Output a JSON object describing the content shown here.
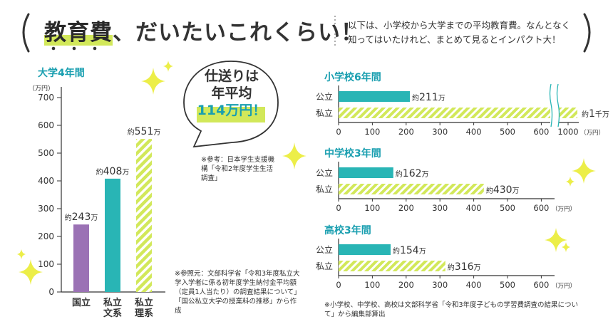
{
  "header": {
    "title_key": "教育費",
    "title_rest": "、だいたいこれくらい！",
    "description": "以下は、小学校から大学までの平均教育費。なんとなく知ってはいたけれど、まとめて見るとインパクト大！"
  },
  "bubble": {
    "line1": "仕送りは",
    "line2": "年平均",
    "line3": "114万円！",
    "note": "※参考：日本学生支援機構「令和2年度学生生活調査」"
  },
  "colors": {
    "teal": "#29b5b5",
    "lime": "#d2e85a",
    "purple": "#9b72b5",
    "heading": "#1a9fb0"
  },
  "chart_data": [
    {
      "type": "bar",
      "title": "大学4年間",
      "ylabel": "（万円）",
      "ylim": [
        0,
        700
      ],
      "yticks": [
        "0",
        "100",
        "200",
        "300",
        "400",
        "500",
        "600",
        "700"
      ],
      "categories": [
        "国立",
        "私立\n文系",
        "私立\n理系"
      ],
      "values": [
        243,
        408,
        551
      ],
      "value_labels": [
        {
          "prefix": "約",
          "num": "243",
          "unit": "万"
        },
        {
          "prefix": "約",
          "num": "408",
          "unit": "万"
        },
        {
          "prefix": "約",
          "num": "551",
          "unit": "万"
        }
      ],
      "note": "※参照元：文部科学省「令和3年度私立大学入学者に係る初年度学生納付金平均額（定員1人当たり）の調査結果について」「国公私立大学の授業料の推移」から作成"
    },
    {
      "type": "bar",
      "orientation": "horizontal",
      "title": "小学校6年間",
      "categories": [
        "公立",
        "私立"
      ],
      "values": [
        211,
        1000
      ],
      "value_labels": [
        {
          "prefix": "約",
          "num": "211",
          "unit": "万"
        },
        {
          "prefix": "約",
          "num": "1",
          "unit": "千万"
        }
      ],
      "xlim": [
        0,
        1000
      ],
      "axis_break": [
        620,
        1000
      ],
      "xticks": [
        "0",
        "100",
        "200",
        "300",
        "400",
        "500",
        "600",
        "1000"
      ],
      "xlabel": "（万円）"
    },
    {
      "type": "bar",
      "orientation": "horizontal",
      "title": "中学校3年間",
      "categories": [
        "公立",
        "私立"
      ],
      "values": [
        162,
        430
      ],
      "value_labels": [
        {
          "prefix": "約",
          "num": "162",
          "unit": "万"
        },
        {
          "prefix": "約",
          "num": "430",
          "unit": "万"
        }
      ],
      "xlim": [
        0,
        620
      ],
      "xticks": [
        "0",
        "100",
        "200",
        "300",
        "400",
        "500",
        "600"
      ],
      "xlabel": "（万円）"
    },
    {
      "type": "bar",
      "orientation": "horizontal",
      "title": "高校3年間",
      "categories": [
        "公立",
        "私立"
      ],
      "values": [
        154,
        316
      ],
      "value_labels": [
        {
          "prefix": "約",
          "num": "154",
          "unit": "万"
        },
        {
          "prefix": "約",
          "num": "316",
          "unit": "万"
        }
      ],
      "xlim": [
        0,
        620
      ],
      "xticks": [
        "0",
        "100",
        "200",
        "300",
        "400",
        "500",
        "600"
      ],
      "xlabel": "（万円）"
    }
  ],
  "bottom_note": "※小学校、中学校、高校は文部科学省「令和3年度子どもの学習費調査の結果について」から編集部算出"
}
